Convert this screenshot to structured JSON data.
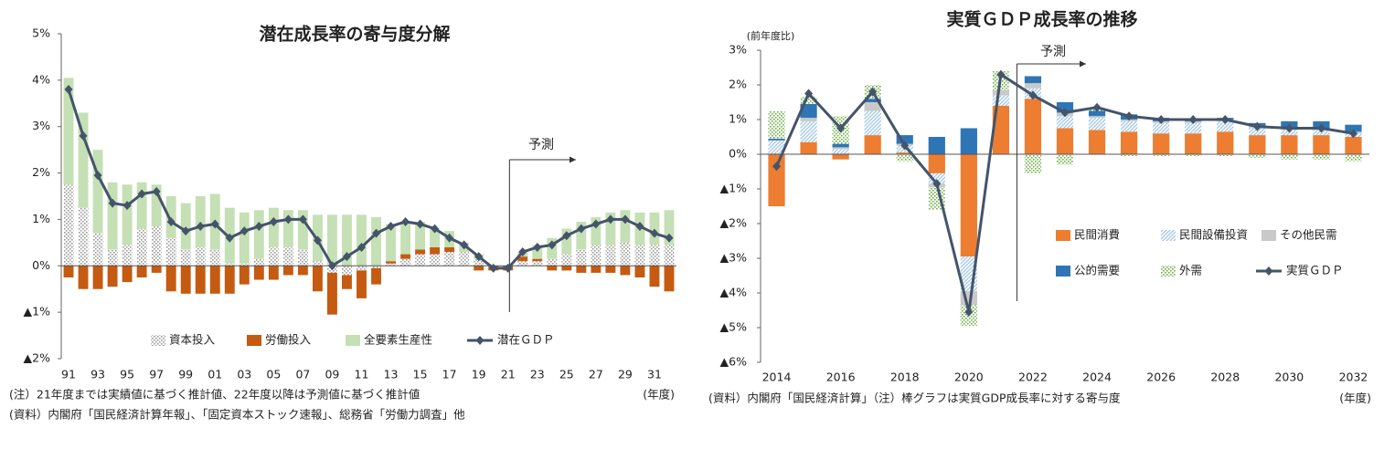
{
  "chart_data": [
    {
      "type": "bar",
      "stacked": true,
      "title": "潜在成長率の寄与度分解",
      "categories": [
        "91",
        null,
        "93",
        null,
        "95",
        null,
        "97",
        null,
        "99",
        null,
        "01",
        null,
        "03",
        null,
        "05",
        null,
        "07",
        null,
        "09",
        null,
        "11",
        null,
        "13",
        null,
        "15",
        null,
        "17",
        null,
        "19",
        null,
        "21",
        null,
        "23",
        null,
        "25",
        null,
        "27",
        null,
        "29",
        null,
        "31",
        null
      ],
      "ylim": [
        -2,
        5
      ],
      "yticks": [
        {
          "value": 5,
          "label": "5%"
        },
        {
          "value": 4,
          "label": "4%"
        },
        {
          "value": 3,
          "label": "3%"
        },
        {
          "value": 2,
          "label": "2%"
        },
        {
          "value": 1,
          "label": "1%"
        },
        {
          "value": 0,
          "label": "0%"
        },
        {
          "value": -1,
          "label": "▲1%"
        },
        {
          "value": -2,
          "label": "▲2%"
        }
      ],
      "series": [
        {
          "name": "資本投入",
          "color": "#9a9a9a",
          "pattern": "dots",
          "values": [
            1.75,
            1.25,
            0.7,
            0.35,
            0.45,
            0.8,
            0.85,
            0.6,
            0.35,
            0.4,
            0.35,
            0.05,
            0.05,
            0.15,
            0.4,
            0.4,
            0.35,
            0.1,
            -0.15,
            -0.2,
            -0.1,
            -0.05,
            0.05,
            0.15,
            0.25,
            0.25,
            0.3,
            0.3,
            0.15,
            0,
            0,
            0.1,
            0.1,
            0.15,
            0.25,
            0.35,
            0.45,
            0.45,
            0.5,
            0.45,
            0.45,
            0.45
          ]
        },
        {
          "name": "労働投入",
          "color": "#c55a11",
          "values": [
            -0.25,
            -0.5,
            -0.5,
            -0.45,
            -0.35,
            -0.25,
            -0.15,
            -0.55,
            -0.6,
            -0.6,
            -0.6,
            -0.6,
            -0.4,
            -0.3,
            -0.3,
            -0.2,
            -0.2,
            -0.55,
            -0.9,
            -0.3,
            -0.6,
            -0.35,
            0.05,
            0.1,
            0.1,
            0.15,
            0.1,
            0,
            -0.1,
            -0.1,
            -0.1,
            0.1,
            0.05,
            -0.1,
            -0.1,
            -0.15,
            -0.15,
            -0.15,
            -0.2,
            -0.25,
            -0.45,
            -0.55
          ]
        },
        {
          "name": "全要素生産性",
          "color": "#c5e0b4",
          "values": [
            2.3,
            2.05,
            1.8,
            1.45,
            1.3,
            1.0,
            0.9,
            0.9,
            1.0,
            1.1,
            1.2,
            1.2,
            1.1,
            1.05,
            0.85,
            0.8,
            0.85,
            1.0,
            1.1,
            1.1,
            1.1,
            1.05,
            0.8,
            0.7,
            0.6,
            0.4,
            0.35,
            0.2,
            0.1,
            0,
            0,
            0.1,
            0.3,
            0.45,
            0.55,
            0.6,
            0.6,
            0.7,
            0.7,
            0.7,
            0.7,
            0.75
          ]
        },
        {
          "name": "潜在ＧＤＰ",
          "color": "#44546a",
          "type": "line",
          "values": [
            3.8,
            2.8,
            1.95,
            1.35,
            1.3,
            1.55,
            1.6,
            0.95,
            0.75,
            0.85,
            0.9,
            0.6,
            0.75,
            0.85,
            0.95,
            1.0,
            1.0,
            0.55,
            0.0,
            0.2,
            0.4,
            0.7,
            0.85,
            0.95,
            0.9,
            0.8,
            0.6,
            0.45,
            0.2,
            -0.05,
            -0.05,
            0.3,
            0.4,
            0.45,
            0.65,
            0.8,
            0.9,
            1.0,
            1.0,
            0.85,
            0.7,
            0.6
          ]
        }
      ],
      "annotation": "予測",
      "x_label": "(年度)",
      "notes": [
        "(注）21年度までは実績値に基づく推計値、22年度以降は予測値に基づく推計値",
        "(資料）内閣府「国民経済計算年報」、「固定資本ストック速報」、総務省「労働力調査」他"
      ]
    },
    {
      "type": "bar",
      "stacked": true,
      "title": "実質ＧＤＰ成長率の推移",
      "y_label": "(前年度比)",
      "categories": [
        "2014",
        null,
        "2016",
        null,
        "2018",
        null,
        "2020",
        null,
        "2022",
        null,
        "2024",
        null,
        "2026",
        null,
        "2028",
        null,
        "2030",
        null,
        "2032"
      ],
      "ylim": [
        -6,
        3
      ],
      "yticks": [
        {
          "value": 3,
          "label": "3%"
        },
        {
          "value": 2,
          "label": "2%"
        },
        {
          "value": 1,
          "label": "1%"
        },
        {
          "value": 0,
          "label": "0%"
        },
        {
          "value": -1,
          "label": "▲1%"
        },
        {
          "value": -2,
          "label": "▲2%"
        },
        {
          "value": -3,
          "label": "▲3%"
        },
        {
          "value": -4,
          "label": "▲4%"
        },
        {
          "value": -5,
          "label": "▲5%"
        },
        {
          "value": -6,
          "label": "▲6%"
        }
      ],
      "series": [
        {
          "name": "民間消費",
          "color": "#ed7d31",
          "values": [
            -1.5,
            0.35,
            -0.15,
            0.55,
            0.05,
            -0.55,
            -2.95,
            1.4,
            1.6,
            0.75,
            0.7,
            0.65,
            0.6,
            0.6,
            0.65,
            0.55,
            0.55,
            0.55,
            0.5
          ]
        },
        {
          "name": "民間設備投資",
          "color": "#9dc3e6",
          "pattern": "hatch",
          "values": [
            0.4,
            0.6,
            0.15,
            0.7,
            0.2,
            -0.3,
            -1.0,
            0.3,
            0.3,
            0.35,
            0.35,
            0.3,
            0.3,
            0.3,
            0.3,
            0.2,
            0.15,
            0.15,
            0.1
          ]
        },
        {
          "name": "その他民需",
          "color": "#c9c9c9",
          "values": [
            0,
            0.1,
            0.05,
            0.25,
            0.05,
            -0.1,
            -0.4,
            0.15,
            0.15,
            0.1,
            0.05,
            0.05,
            0.05,
            0.05,
            0.05,
            0.05,
            0.05,
            0.05,
            0.05
          ]
        },
        {
          "name": "公的需要",
          "color": "#2e75b6",
          "values": [
            0.05,
            0.4,
            0.1,
            0.1,
            0.25,
            0.5,
            0.75,
            0,
            0.2,
            0.3,
            0.15,
            0.15,
            0.1,
            0.05,
            0.05,
            0.1,
            0.2,
            0.2,
            0.2
          ]
        },
        {
          "name": "外需",
          "color": "#70ad47",
          "pattern": "dots",
          "values": [
            0.8,
            0.2,
            0.8,
            0.4,
            -0.2,
            -0.65,
            -0.6,
            0.55,
            -0.55,
            -0.3,
            0.05,
            -0.05,
            -0.05,
            -0.05,
            -0.05,
            -0.1,
            -0.15,
            -0.15,
            -0.2
          ]
        },
        {
          "name": "実質ＧＤＰ",
          "color": "#44546a",
          "type": "line",
          "values": [
            -0.35,
            1.75,
            0.75,
            1.8,
            0.25,
            -0.85,
            -4.55,
            2.3,
            1.7,
            1.2,
            1.35,
            1.1,
            1.0,
            1.0,
            1.0,
            0.8,
            0.75,
            0.75,
            0.6
          ]
        }
      ],
      "annotation": "予測",
      "x_label": "(年度)",
      "notes": [
        "(資料）内閣府「国民経済計算」（注）棒グラフは実質GDP成長率に対する寄与度"
      ]
    }
  ]
}
